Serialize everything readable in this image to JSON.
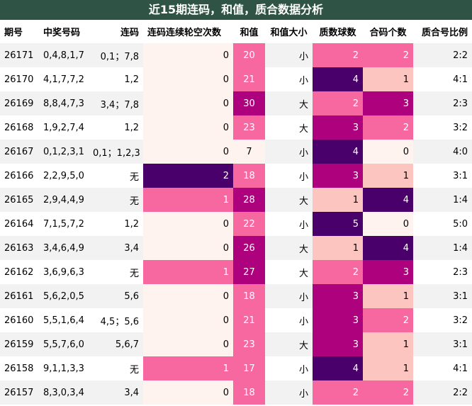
{
  "title": "近15期连码，和值，质合数据分析",
  "headers": [
    "期号",
    "中奖号码",
    "连码",
    "连码连续轮空次数",
    "和值",
    "和值大小",
    "质数球数",
    "合码个数",
    "质合号比例"
  ],
  "rows": [
    {
      "period": "26171",
      "numbers": "0,4,8,1,7",
      "consecutive": "0,1；7,8",
      "skip": "0",
      "sum": "20",
      "size": "小",
      "prime": "2",
      "composite": "2",
      "ratio": "2:2"
    },
    {
      "period": "26170",
      "numbers": "4,1,7,7,2",
      "consecutive": "1,2",
      "skip": "0",
      "sum": "21",
      "size": "小",
      "prime": "4",
      "composite": "1",
      "ratio": "4:1"
    },
    {
      "period": "26169",
      "numbers": "8,8,4,7,3",
      "consecutive": "3,4；7,8",
      "skip": "0",
      "sum": "30",
      "size": "大",
      "prime": "2",
      "composite": "3",
      "ratio": "2:3"
    },
    {
      "period": "26168",
      "numbers": "1,9,2,7,4",
      "consecutive": "1,2",
      "skip": "0",
      "sum": "23",
      "size": "大",
      "prime": "3",
      "composite": "2",
      "ratio": "3:2"
    },
    {
      "period": "26167",
      "numbers": "0,1,2,3,1",
      "consecutive": "0,1；1,2,3",
      "skip": "0",
      "sum": "7",
      "size": "小",
      "prime": "4",
      "composite": "0",
      "ratio": "4:0"
    },
    {
      "period": "26166",
      "numbers": "2,2,9,5,0",
      "consecutive": "无",
      "skip": "2",
      "sum": "18",
      "size": "小",
      "prime": "3",
      "composite": "1",
      "ratio": "3:1"
    },
    {
      "period": "26165",
      "numbers": "2,9,4,4,9",
      "consecutive": "无",
      "skip": "1",
      "sum": "28",
      "size": "大",
      "prime": "1",
      "composite": "4",
      "ratio": "1:4"
    },
    {
      "period": "26164",
      "numbers": "7,1,5,7,2",
      "consecutive": "1,2",
      "skip": "0",
      "sum": "22",
      "size": "小",
      "prime": "5",
      "composite": "0",
      "ratio": "5:0"
    },
    {
      "period": "26163",
      "numbers": "3,4,6,4,9",
      "consecutive": "3,4",
      "skip": "0",
      "sum": "26",
      "size": "大",
      "prime": "1",
      "composite": "4",
      "ratio": "1:4"
    },
    {
      "period": "26162",
      "numbers": "3,6,9,6,3",
      "consecutive": "无",
      "skip": "1",
      "sum": "27",
      "size": "大",
      "prime": "2",
      "composite": "3",
      "ratio": "2:3"
    },
    {
      "period": "26161",
      "numbers": "5,6,2,0,5",
      "consecutive": "5,6",
      "skip": "0",
      "sum": "18",
      "size": "小",
      "prime": "3",
      "composite": "1",
      "ratio": "3:1"
    },
    {
      "period": "26160",
      "numbers": "5,5,1,6,4",
      "consecutive": "4,5；5,6",
      "skip": "0",
      "sum": "21",
      "size": "小",
      "prime": "3",
      "composite": "2",
      "ratio": "3:2"
    },
    {
      "period": "26159",
      "numbers": "5,5,7,6,0",
      "consecutive": "5,6,7",
      "skip": "0",
      "sum": "23",
      "size": "大",
      "prime": "3",
      "composite": "1",
      "ratio": "3:1"
    },
    {
      "period": "26158",
      "numbers": "9,1,1,3,3",
      "consecutive": "无",
      "skip": "1",
      "sum": "17",
      "size": "小",
      "prime": "4",
      "composite": "1",
      "ratio": "4:1"
    },
    {
      "period": "26157",
      "numbers": "8,3,0,3,4",
      "consecutive": "3,4",
      "skip": "0",
      "sum": "18",
      "size": "小",
      "prime": "2",
      "composite": "2",
      "ratio": "2:2"
    }
  ]
}
